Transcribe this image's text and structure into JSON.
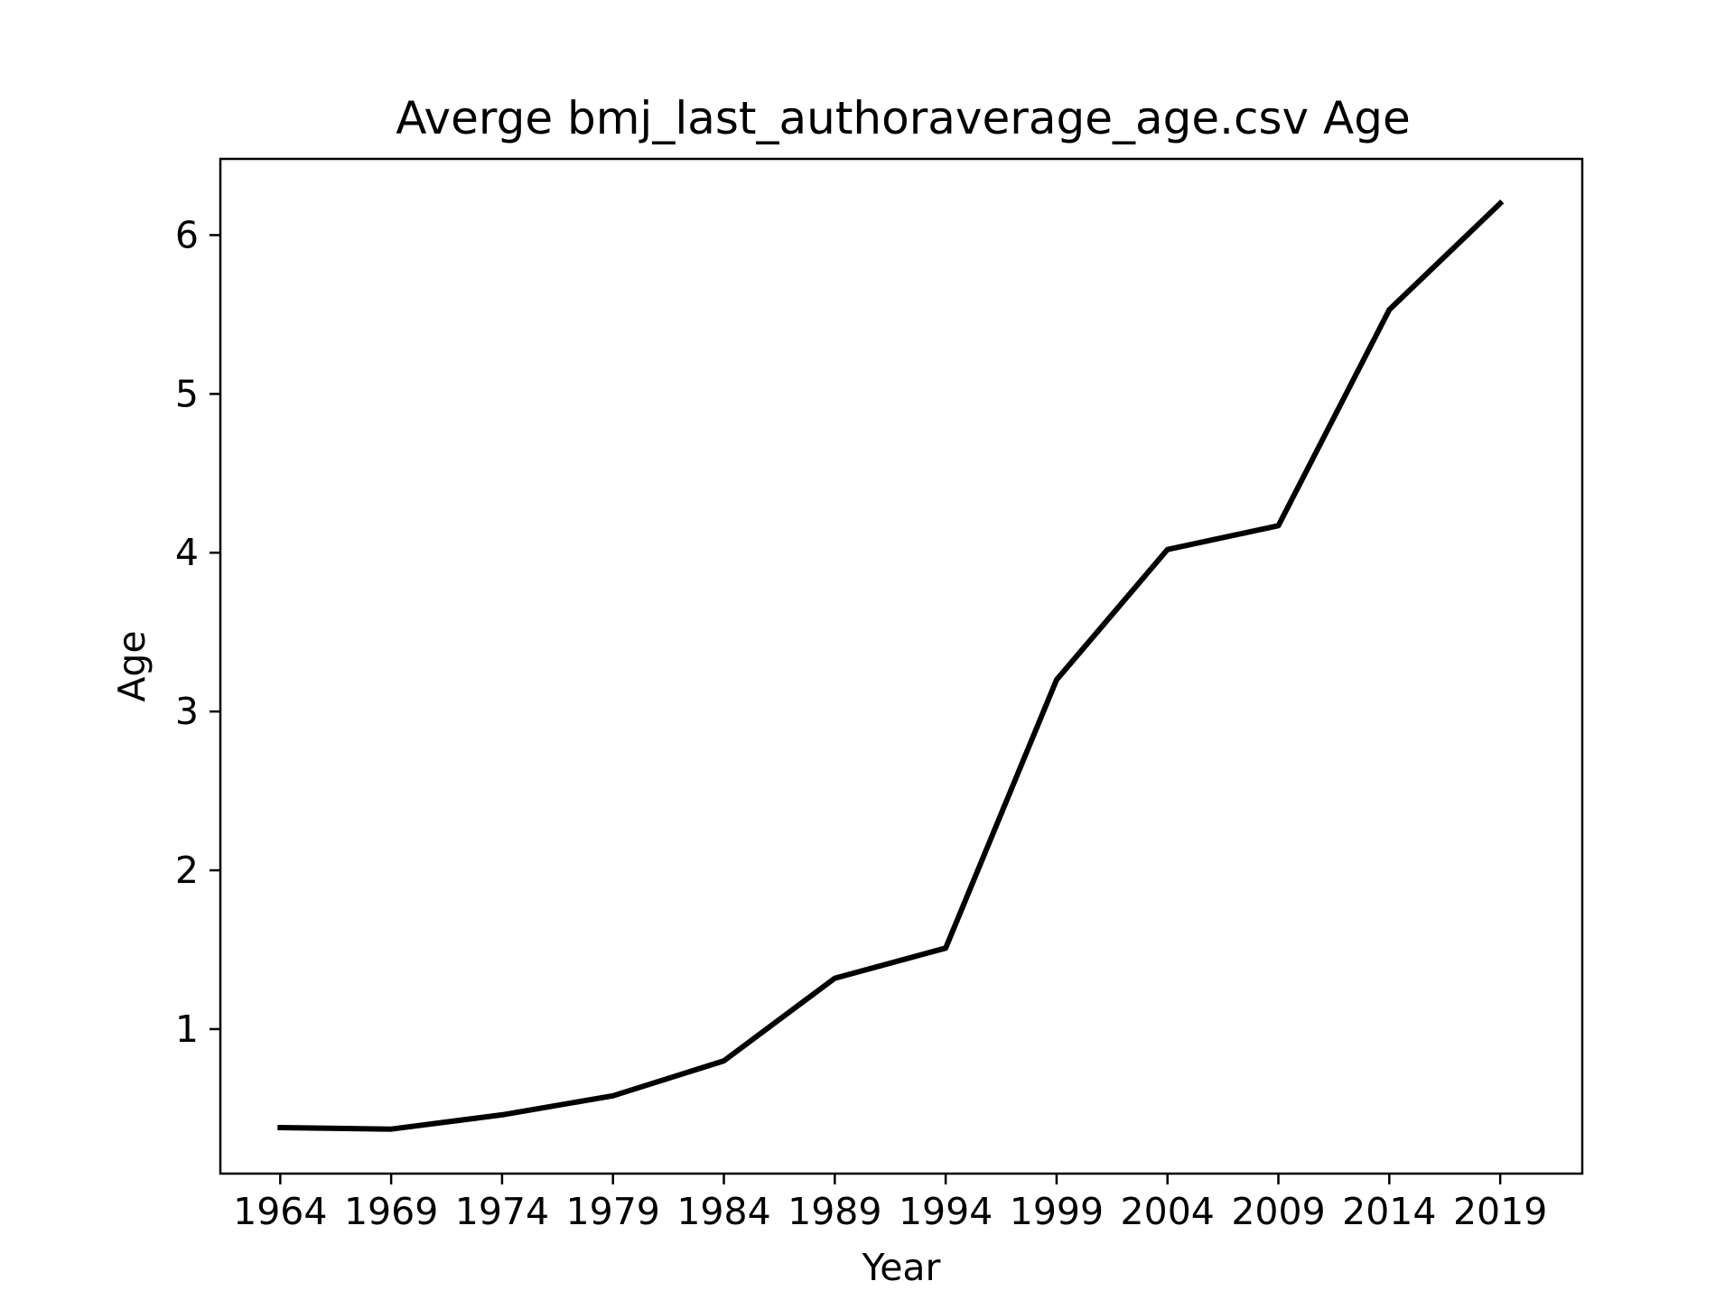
{
  "chart_data": {
    "type": "line",
    "title": "Averge bmj_last_authoraverage_age.csv Age",
    "xlabel": "Year",
    "ylabel": "Age",
    "x": [
      1964,
      1969,
      1974,
      1979,
      1984,
      1989,
      1994,
      1999,
      2004,
      2009,
      2014,
      2019
    ],
    "x_tick_labels": [
      "1964",
      "1969",
      "1974",
      "1979",
      "1984",
      "1989",
      "1994",
      "1999",
      "2004",
      "2009",
      "2014",
      "2019"
    ],
    "y_ticks": [
      1,
      2,
      3,
      4,
      5,
      6
    ],
    "y_tick_labels": [
      "1",
      "2",
      "3",
      "4",
      "5",
      "6"
    ],
    "xlim": [
      1961.3,
      2022.7
    ],
    "ylim": [
      0.09,
      6.48
    ],
    "grid": false,
    "series": [
      {
        "values": [
          0.38,
          0.37,
          0.46,
          0.58,
          0.8,
          1.32,
          1.51,
          3.2,
          4.02,
          4.17,
          5.53,
          6.2
        ],
        "color": "#000000"
      }
    ]
  }
}
